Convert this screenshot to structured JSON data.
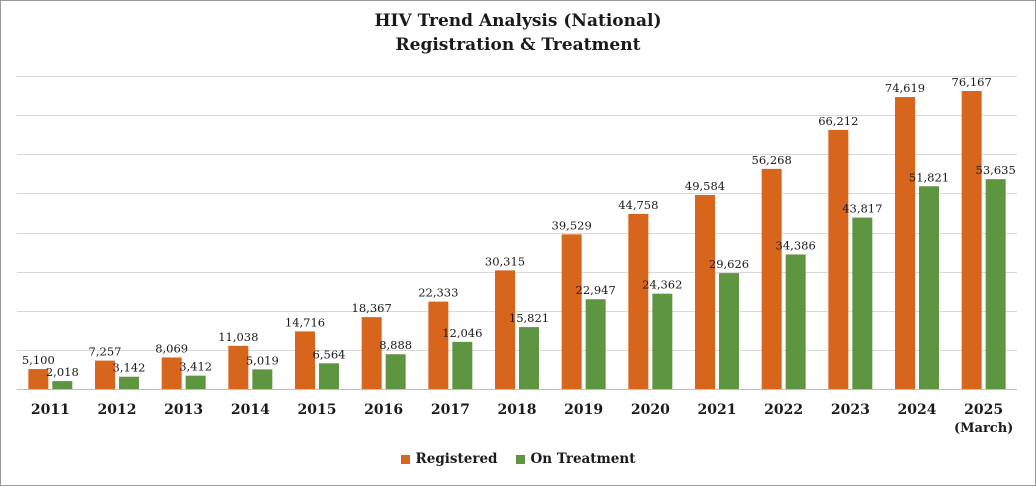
{
  "chart_data": {
    "type": "bar",
    "title": "HIV Trend Analysis (National)",
    "subtitle": "Registration & Treatment",
    "categories": [
      "2011",
      "2012",
      "2013",
      "2014",
      "2015",
      "2016",
      "2017",
      "2018",
      "2019",
      "2020",
      "2021",
      "2022",
      "2023",
      "2024",
      "2025"
    ],
    "category_sublabels": {
      "2025": "(March)"
    },
    "series": [
      {
        "name": "Registered",
        "color": "#D8651C",
        "values": [
          5100,
          7257,
          8069,
          11038,
          14716,
          18367,
          22333,
          30315,
          39529,
          44758,
          49584,
          56268,
          66212,
          74619,
          76167
        ]
      },
      {
        "name": "On Treatment",
        "color": "#5E9540",
        "values": [
          2018,
          3142,
          3412,
          5019,
          6564,
          8888,
          12046,
          15821,
          22947,
          24362,
          29626,
          34386,
          43817,
          51821,
          53635
        ]
      }
    ],
    "value_labels": {
      "Registered": [
        "5,100",
        "7,257",
        "8,069",
        "11,038",
        "14,716",
        "18,367",
        "22,333",
        "30,315",
        "39,529",
        "44,758",
        "49,584",
        "56,268",
        "66,212",
        "74,619",
        "76,167"
      ],
      "On Treatment": [
        "2,018",
        "3,142",
        "3,412",
        "5,019",
        "6,564",
        "8,888",
        "12,046",
        "15,821",
        "22,947",
        "24,362",
        "29,626",
        "34,386",
        "43,817",
        "51,821",
        "53,635"
      ]
    },
    "xlabel": "",
    "ylabel": "",
    "ylim": [
      0,
      80000
    ],
    "grid": true,
    "legend_position": "bottom"
  }
}
